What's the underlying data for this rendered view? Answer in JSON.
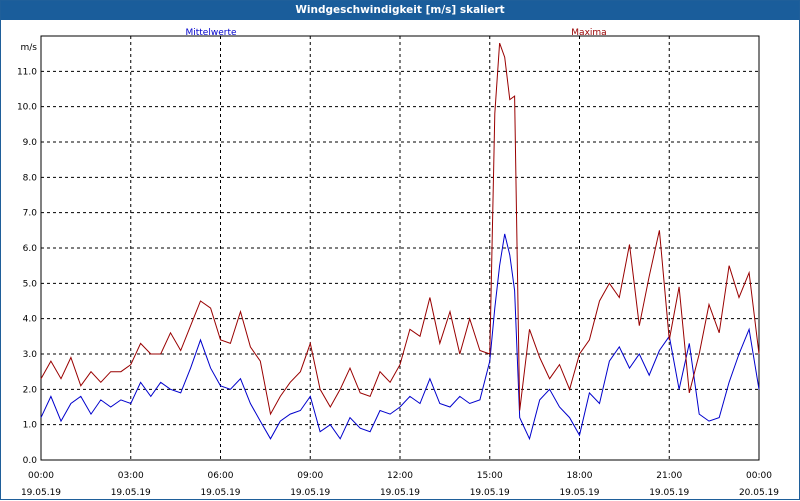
{
  "window": {
    "title": "Windgeschwindigkeit [m/s] skaliert"
  },
  "chart_data": {
    "type": "line",
    "ylabel": "m/s",
    "ylim": [
      0,
      12
    ],
    "grid": true,
    "legend": "top",
    "y_ticks": [
      "0.0",
      "1.0",
      "2.0",
      "3.0",
      "4.0",
      "5.0",
      "6.0",
      "7.0",
      "8.0",
      "9.0",
      "10.0",
      "11.0"
    ],
    "x_ticks": [
      {
        "time": "00:00",
        "date": "19.05.19"
      },
      {
        "time": "03:00",
        "date": "19.05.19"
      },
      {
        "time": "06:00",
        "date": "19.05.19"
      },
      {
        "time": "09:00",
        "date": "19.05.19"
      },
      {
        "time": "12:00",
        "date": "19.05.19"
      },
      {
        "time": "15:00",
        "date": "19.05.19"
      },
      {
        "time": "18:00",
        "date": "19.05.19"
      },
      {
        "time": "21:00",
        "date": "19.05.19"
      },
      {
        "time": "00:00",
        "date": "20.05.19"
      }
    ],
    "series": [
      {
        "name": "Mittelwerte",
        "color": "#0000cc",
        "x_hours": [
          0,
          0.33,
          0.67,
          1,
          1.33,
          1.67,
          2,
          2.33,
          2.67,
          3,
          3.33,
          3.67,
          4,
          4.33,
          4.67,
          5,
          5.33,
          5.67,
          6,
          6.33,
          6.67,
          7,
          7.33,
          7.67,
          8,
          8.33,
          8.67,
          9,
          9.33,
          9.67,
          10,
          10.33,
          10.67,
          11,
          11.33,
          11.67,
          12,
          12.33,
          12.67,
          13,
          13.33,
          13.67,
          14,
          14.33,
          14.67,
          15,
          15.17,
          15.33,
          15.5,
          15.67,
          15.83,
          16,
          16.33,
          16.67,
          17,
          17.33,
          17.67,
          18,
          18.33,
          18.67,
          19,
          19.33,
          19.67,
          20,
          20.33,
          20.67,
          21,
          21.33,
          21.67,
          22,
          22.33,
          22.67,
          23,
          23.33,
          23.67,
          24
        ],
        "values": [
          1.2,
          1.8,
          1.1,
          1.6,
          1.8,
          1.3,
          1.7,
          1.5,
          1.7,
          1.6,
          2.2,
          1.8,
          2.2,
          2.0,
          1.9,
          2.6,
          3.4,
          2.6,
          2.1,
          2.0,
          2.3,
          1.6,
          1.1,
          0.6,
          1.1,
          1.3,
          1.4,
          1.8,
          0.8,
          1.0,
          0.6,
          1.2,
          0.9,
          0.8,
          1.4,
          1.3,
          1.5,
          1.8,
          1.6,
          2.3,
          1.6,
          1.5,
          1.8,
          1.6,
          1.7,
          2.8,
          4.3,
          5.5,
          6.4,
          5.8,
          4.8,
          1.2,
          0.6,
          1.7,
          2.0,
          1.5,
          1.2,
          0.7,
          1.9,
          1.6,
          2.8,
          3.2,
          2.6,
          3.0,
          2.4,
          3.1,
          3.5,
          2.0,
          3.3,
          1.3,
          1.1,
          1.2,
          2.2,
          3.0,
          3.7,
          2.0
        ]
      },
      {
        "name": "Maxima",
        "color": "#990000",
        "x_hours": [
          0,
          0.33,
          0.67,
          1,
          1.33,
          1.67,
          2,
          2.33,
          2.67,
          3,
          3.33,
          3.67,
          4,
          4.33,
          4.67,
          5,
          5.33,
          5.67,
          6,
          6.33,
          6.67,
          7,
          7.33,
          7.67,
          8,
          8.33,
          8.67,
          9,
          9.33,
          9.67,
          10,
          10.33,
          10.67,
          11,
          11.33,
          11.67,
          12,
          12.33,
          12.67,
          13,
          13.33,
          13.67,
          14,
          14.33,
          14.67,
          15,
          15.17,
          15.33,
          15.5,
          15.67,
          15.83,
          16,
          16.33,
          16.67,
          17,
          17.33,
          17.67,
          18,
          18.33,
          18.67,
          19,
          19.33,
          19.67,
          20,
          20.33,
          20.67,
          21,
          21.33,
          21.67,
          22,
          22.33,
          22.67,
          23,
          23.33,
          23.67,
          24
        ],
        "values": [
          2.3,
          2.8,
          2.3,
          2.9,
          2.1,
          2.5,
          2.2,
          2.5,
          2.5,
          2.7,
          3.3,
          3.0,
          3.0,
          3.6,
          3.1,
          3.8,
          4.5,
          4.3,
          3.4,
          3.3,
          4.2,
          3.2,
          2.8,
          1.3,
          1.8,
          2.2,
          2.5,
          3.3,
          2.0,
          1.5,
          2.0,
          2.6,
          1.9,
          1.8,
          2.5,
          2.2,
          2.7,
          3.7,
          3.5,
          4.6,
          3.3,
          4.2,
          3.0,
          4.0,
          3.1,
          3.0,
          9.8,
          11.8,
          11.4,
          10.2,
          10.3,
          1.4,
          3.7,
          2.9,
          2.3,
          2.7,
          2.0,
          3.0,
          3.4,
          4.5,
          5.0,
          4.6,
          6.1,
          3.8,
          5.2,
          6.5,
          3.4,
          4.9,
          1.9,
          3.0,
          4.4,
          3.6,
          5.5,
          4.6,
          5.3,
          3.0
        ]
      }
    ]
  }
}
